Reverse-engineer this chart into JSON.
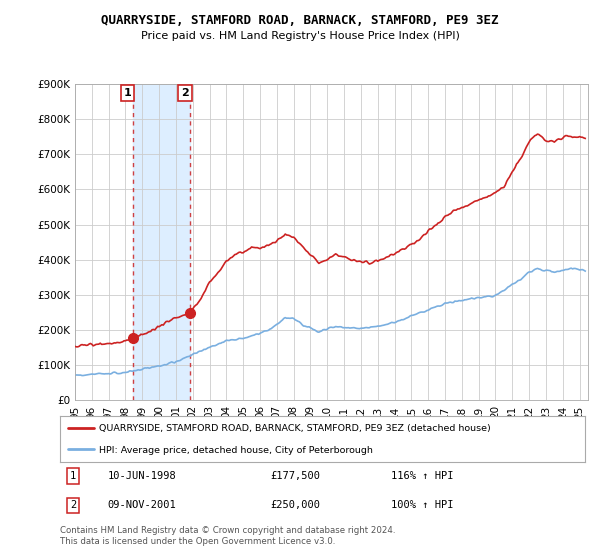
{
  "title": "QUARRYSIDE, STAMFORD ROAD, BARNACK, STAMFORD, PE9 3EZ",
  "subtitle": "Price paid vs. HM Land Registry's House Price Index (HPI)",
  "ylim": [
    0,
    900000
  ],
  "yticks": [
    0,
    100000,
    200000,
    300000,
    400000,
    500000,
    600000,
    700000,
    800000,
    900000
  ],
  "xlim_start": 1995.0,
  "xlim_end": 2025.5,
  "legend_line1": "QUARRYSIDE, STAMFORD ROAD, BARNACK, STAMFORD, PE9 3EZ (detached house)",
  "legend_line2": "HPI: Average price, detached house, City of Peterborough",
  "sale1_date": "10-JUN-1998",
  "sale1_price": "£177,500",
  "sale1_hpi": "116% ↑ HPI",
  "sale1_year": 1998.45,
  "sale1_value": 177500,
  "sale2_date": "09-NOV-2001",
  "sale2_price": "£250,000",
  "sale2_hpi": "100% ↑ HPI",
  "sale2_year": 2001.86,
  "sale2_value": 250000,
  "footer": "Contains HM Land Registry data © Crown copyright and database right 2024.\nThis data is licensed under the Open Government Licence v3.0.",
  "red_color": "#cc2222",
  "blue_color": "#7aafe0",
  "shaded_color": "#ddeeff",
  "vline_color": "#cc2222",
  "background_color": "#ffffff",
  "grid_color": "#cccccc"
}
